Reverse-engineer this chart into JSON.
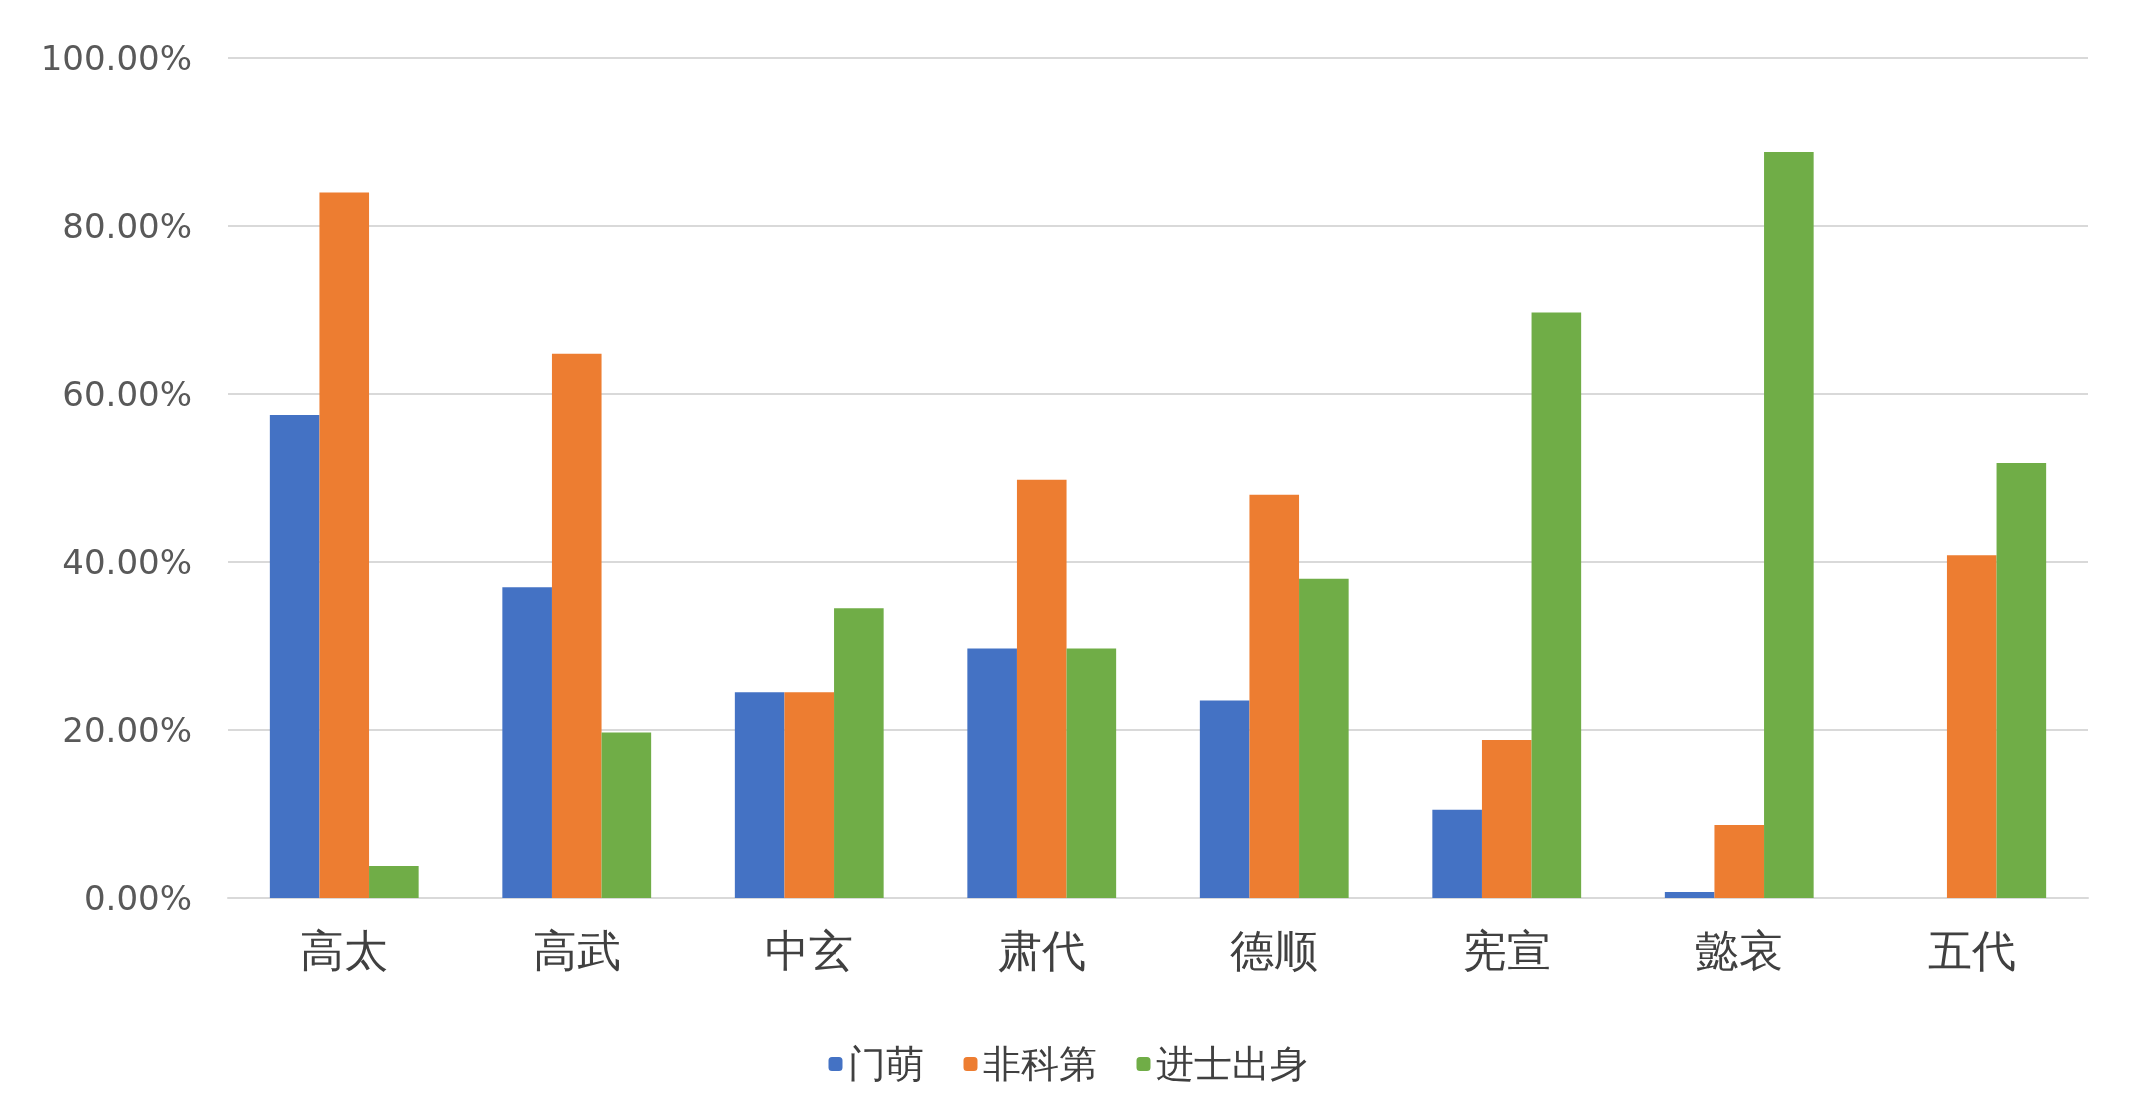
{
  "chart_data": {
    "type": "bar",
    "categories": [
      "高太",
      "高武",
      "中玄",
      "肃代",
      "德顺",
      "宪宣",
      "懿哀",
      "五代"
    ],
    "series": [
      {
        "name": "门萌",
        "color": "#4472c4",
        "values": [
          57.5,
          37,
          24.5,
          29.7,
          23.5,
          10.5,
          0.7,
          0
        ]
      },
      {
        "name": "非科第",
        "color": "#ed7d31",
        "values": [
          84,
          64.8,
          24.5,
          49.8,
          48,
          18.8,
          8.7,
          40.8
        ]
      },
      {
        "name": "进士出身",
        "color": "#70ad47",
        "values": [
          3.8,
          19.7,
          34.5,
          29.7,
          38,
          69.7,
          88.8,
          51.8
        ]
      }
    ],
    "ylim": [
      0,
      100
    ],
    "yticks": [
      {
        "value": 0,
        "label": "0.00%"
      },
      {
        "value": 20,
        "label": "20.00%"
      },
      {
        "value": 40,
        "label": "40.00%"
      },
      {
        "value": 60,
        "label": "60.00%"
      },
      {
        "value": 80,
        "label": "80.00%"
      },
      {
        "value": 100,
        "label": "100.00%"
      }
    ],
    "grid": "y",
    "legend": "bottom"
  }
}
